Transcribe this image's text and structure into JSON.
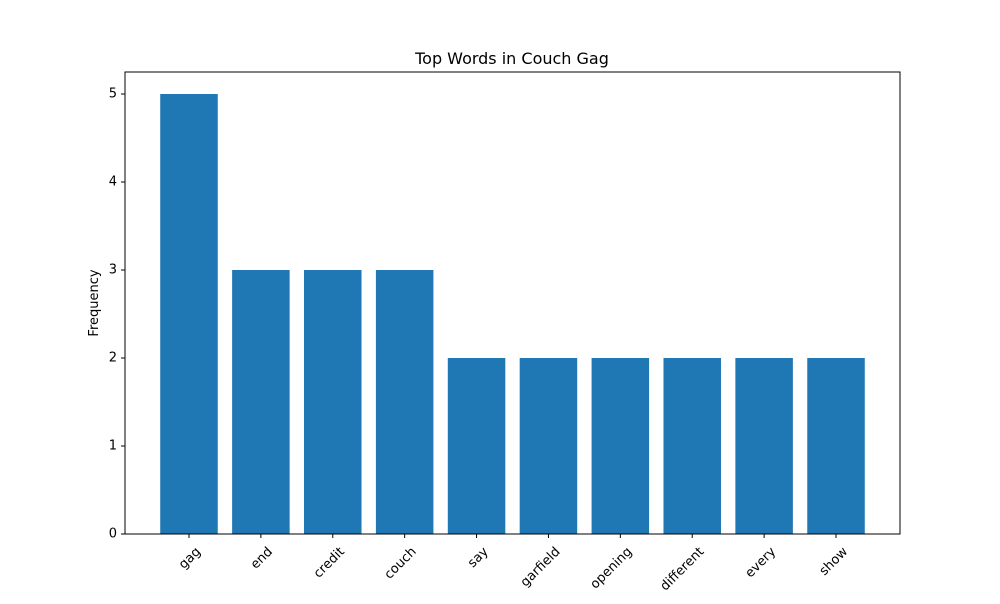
{
  "chart_data": {
    "type": "bar",
    "title": "Top Words in Couch Gag",
    "xlabel": "",
    "ylabel": "Frequency",
    "categories": [
      "gag",
      "end",
      "credit",
      "couch",
      "say",
      "garfield",
      "opening",
      "different",
      "every",
      "show"
    ],
    "values": [
      5,
      3,
      3,
      3,
      2,
      2,
      2,
      2,
      2,
      2
    ],
    "ylim": [
      0,
      5.25
    ],
    "yticks": [
      0,
      1,
      2,
      3,
      4,
      5
    ],
    "grid": false,
    "legend": "none",
    "bar_color": "#1f77b4"
  }
}
